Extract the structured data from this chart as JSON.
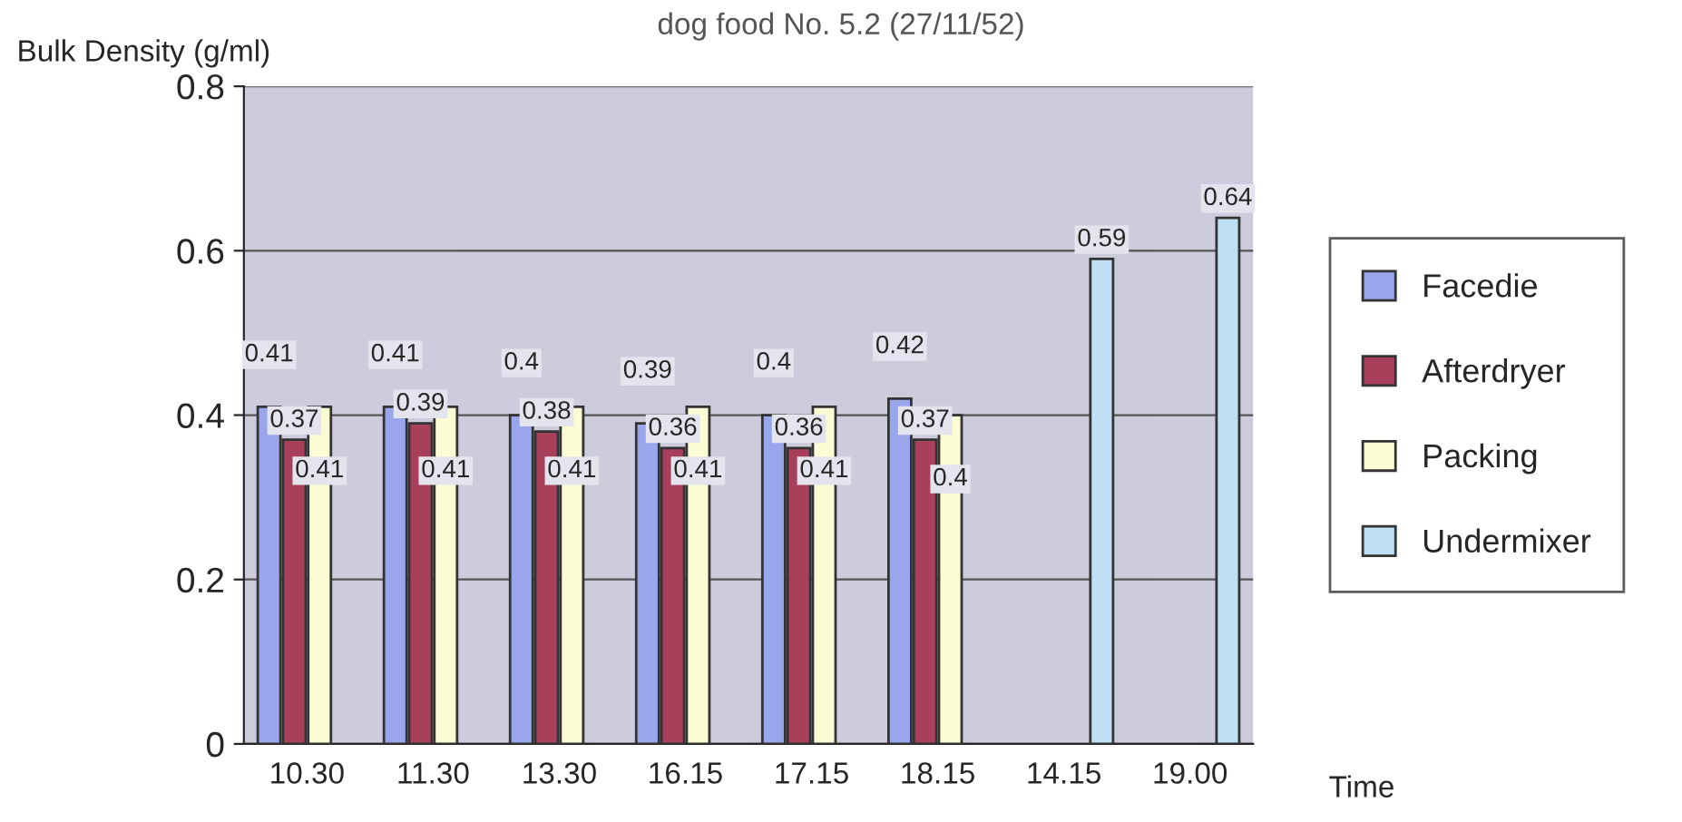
{
  "chart_data": {
    "type": "bar",
    "title": "dog food No. 5.2 (27/11/52)",
    "ylabel": "Bulk Density (g/ml)",
    "xlabel": "Time",
    "categories": [
      "10.30",
      "11.30",
      "13.30",
      "16.15",
      "17.15",
      "18.15",
      "14.15",
      "19.00"
    ],
    "series": [
      {
        "name": "Facedie",
        "color": "#9aa6ec",
        "values": [
          0.41,
          0.41,
          0.4,
          0.39,
          0.4,
          0.42,
          null,
          null
        ]
      },
      {
        "name": "Afterdryer",
        "color": "#a8405c",
        "values": [
          0.37,
          0.39,
          0.38,
          0.36,
          0.36,
          0.37,
          null,
          null
        ]
      },
      {
        "name": "Packing",
        "color": "#fcfcd4",
        "values": [
          0.41,
          0.41,
          0.41,
          0.41,
          0.41,
          0.4,
          null,
          null
        ]
      },
      {
        "name": "Undermixer",
        "color": "#bfe0f4",
        "values": [
          null,
          null,
          null,
          null,
          null,
          null,
          0.59,
          0.64
        ]
      }
    ],
    "ylim": [
      0,
      0.8
    ],
    "yticks": [
      0,
      0.2,
      0.4,
      0.6,
      0.8
    ],
    "grid": "y",
    "legend": "right",
    "data_labels": true
  }
}
